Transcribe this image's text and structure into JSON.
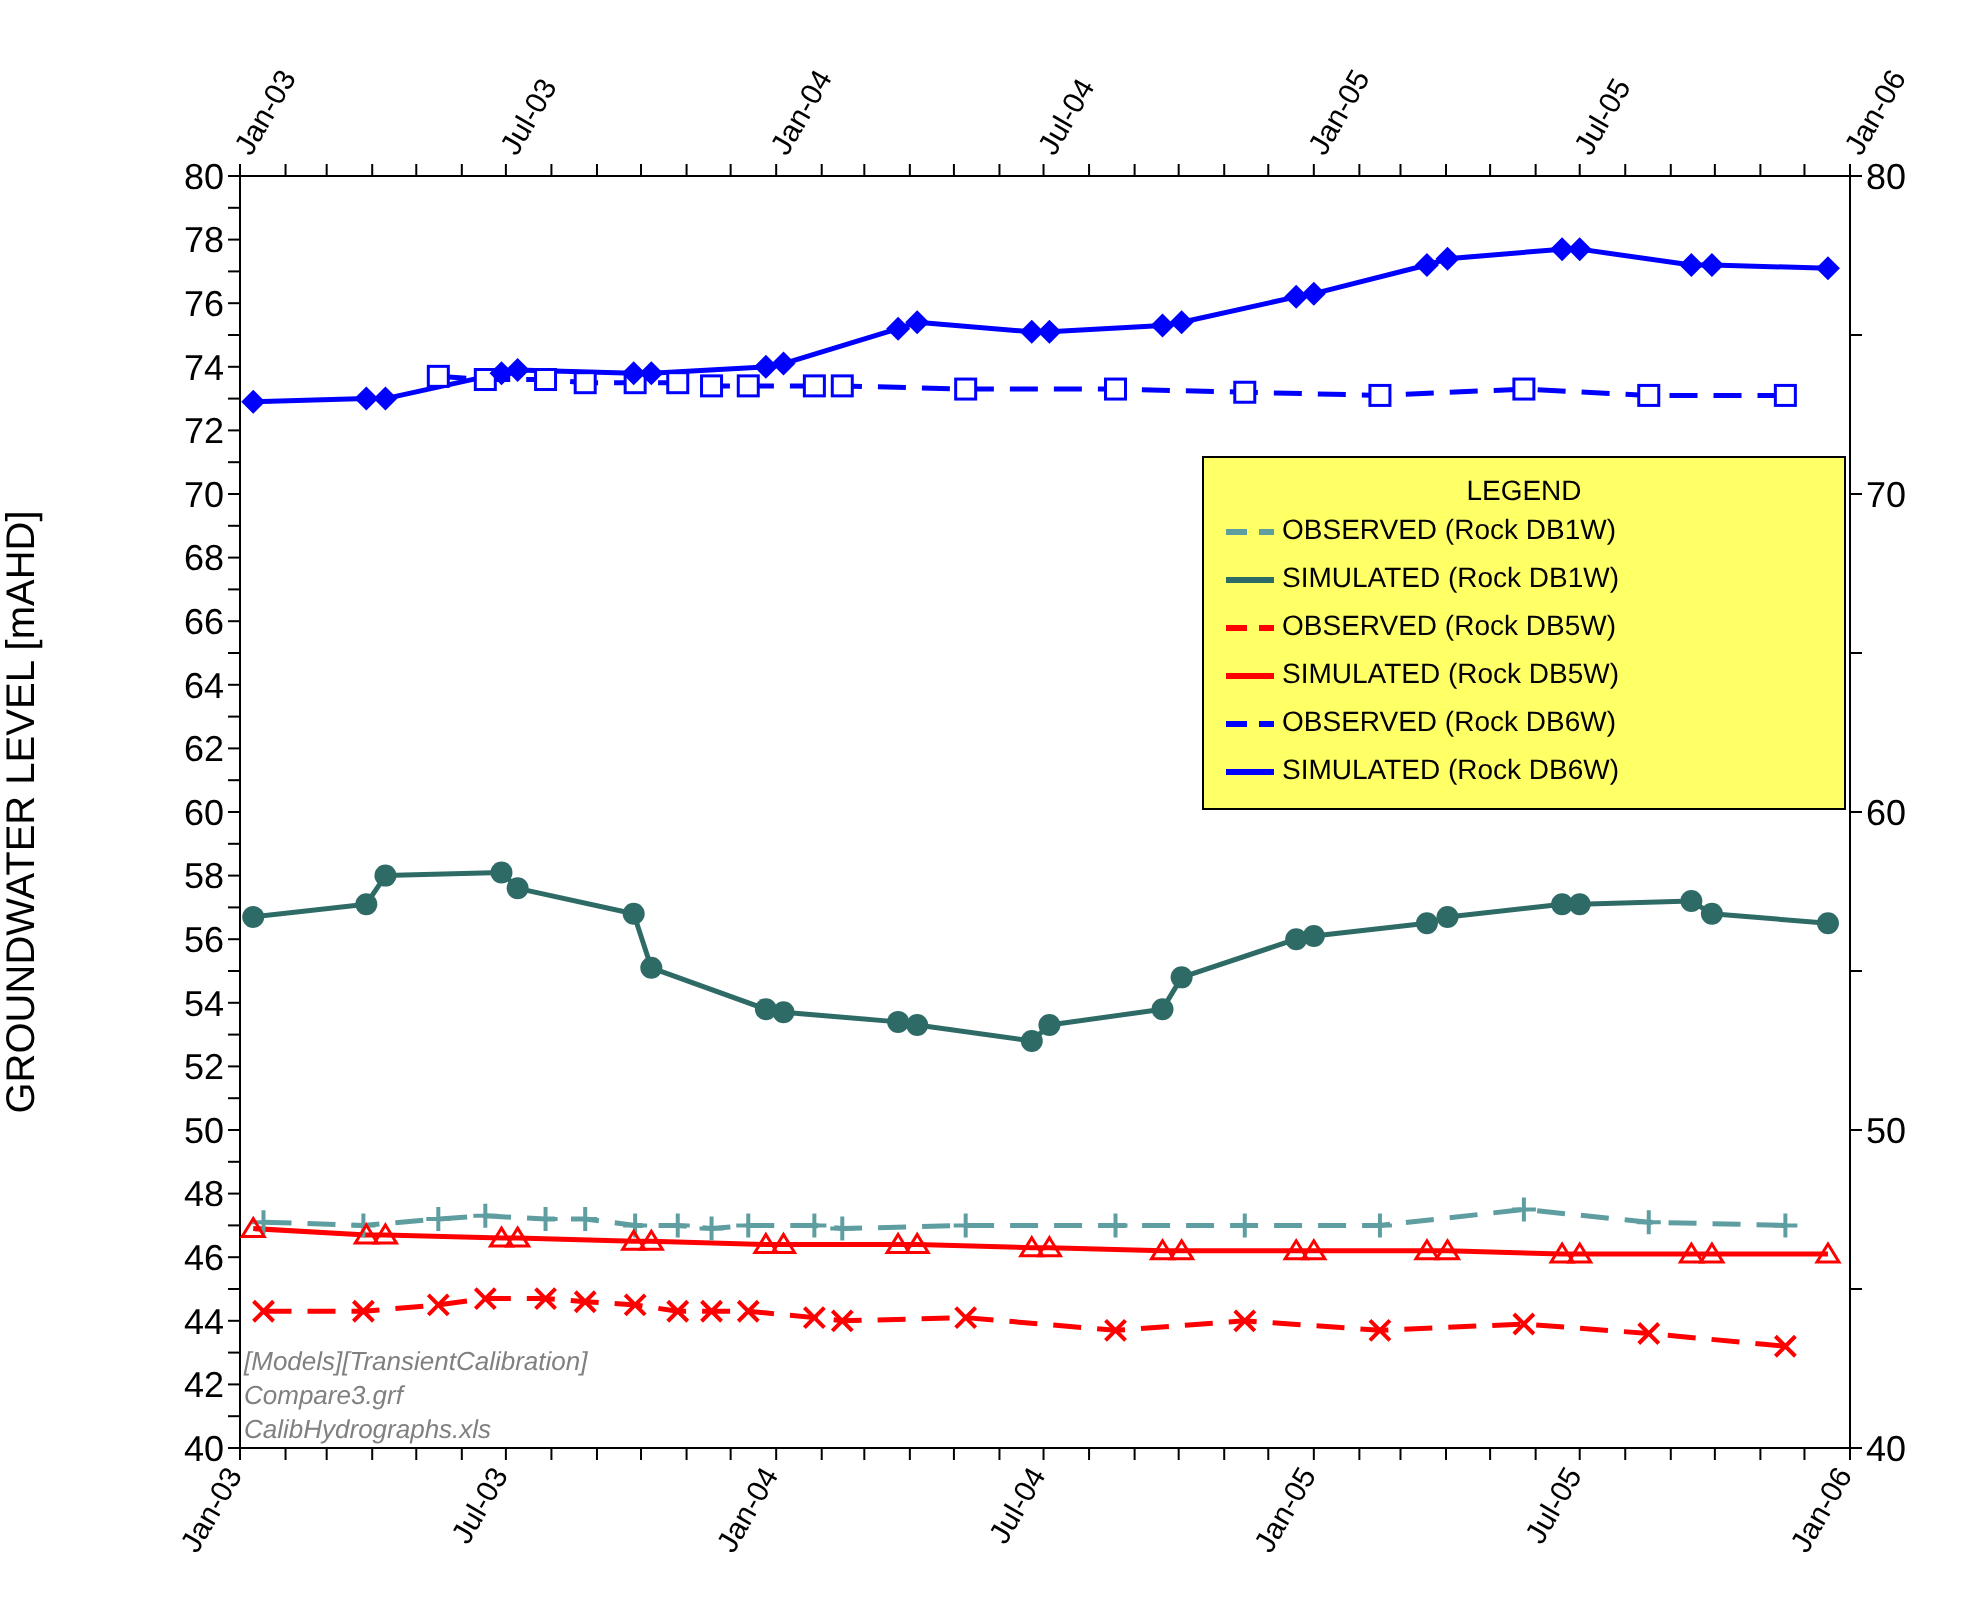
{
  "chart_data": {
    "type": "line",
    "ylabel": "GROUNDWATER LEVEL [mAHD]",
    "legend_title": "LEGEND",
    "legend": "top right",
    "xlim": [
      "2003-01",
      "2006-01"
    ],
    "xticks": [
      {
        "value": "2003-01",
        "label": "Jan-03"
      },
      {
        "value": "2003-02",
        "label": null
      },
      {
        "value": "2003-03",
        "label": null
      },
      {
        "value": "2003-04",
        "label": null
      },
      {
        "value": "2003-05",
        "label": null
      },
      {
        "value": "2003-06",
        "label": null
      },
      {
        "value": "2003-07",
        "label": "Jul-03"
      },
      {
        "value": "2003-08",
        "label": null
      },
      {
        "value": "2003-09",
        "label": null
      },
      {
        "value": "2003-10",
        "label": null
      },
      {
        "value": "2003-11",
        "label": null
      },
      {
        "value": "2003-12",
        "label": null
      },
      {
        "value": "2004-01",
        "label": "Jan-04"
      },
      {
        "value": "2004-02",
        "label": null
      },
      {
        "value": "2004-03",
        "label": null
      },
      {
        "value": "2004-04",
        "label": null
      },
      {
        "value": "2004-05",
        "label": null
      },
      {
        "value": "2004-06",
        "label": null
      },
      {
        "value": "2004-07",
        "label": "Jul-04"
      },
      {
        "value": "2004-08",
        "label": null
      },
      {
        "value": "2004-09",
        "label": null
      },
      {
        "value": "2004-10",
        "label": null
      },
      {
        "value": "2004-11",
        "label": null
      },
      {
        "value": "2004-12",
        "label": null
      },
      {
        "value": "2005-01",
        "label": "Jan-05"
      },
      {
        "value": "2005-02",
        "label": null
      },
      {
        "value": "2005-03",
        "label": null
      },
      {
        "value": "2005-04",
        "label": null
      },
      {
        "value": "2005-05",
        "label": null
      },
      {
        "value": "2005-06",
        "label": null
      },
      {
        "value": "2005-07",
        "label": "Jul-05"
      },
      {
        "value": "2005-08",
        "label": null
      },
      {
        "value": "2005-09",
        "label": null
      },
      {
        "value": "2005-10",
        "label": null
      },
      {
        "value": "2005-11",
        "label": null
      },
      {
        "value": "2005-12",
        "label": null
      },
      {
        "value": "2006-01",
        "label": "Jan-06"
      }
    ],
    "x2lim": [
      "2003-01",
      "2006-01"
    ],
    "x2ticks": [
      {
        "value": "2003-01",
        "label": "Jan-03"
      },
      {
        "value": "2003-02",
        "label": null
      },
      {
        "value": "2003-03",
        "label": null
      },
      {
        "value": "2003-04",
        "label": null
      },
      {
        "value": "2003-05",
        "label": null
      },
      {
        "value": "2003-06",
        "label": null
      },
      {
        "value": "2003-07",
        "label": "Jul-03"
      },
      {
        "value": "2003-08",
        "label": null
      },
      {
        "value": "2003-09",
        "label": null
      },
      {
        "value": "2003-10",
        "label": null
      },
      {
        "value": "2003-11",
        "label": null
      },
      {
        "value": "2003-12",
        "label": null
      },
      {
        "value": "2004-01",
        "label": "Jan-04"
      },
      {
        "value": "2004-02",
        "label": null
      },
      {
        "value": "2004-03",
        "label": null
      },
      {
        "value": "2004-04",
        "label": null
      },
      {
        "value": "2004-05",
        "label": null
      },
      {
        "value": "2004-06",
        "label": null
      },
      {
        "value": "2004-07",
        "label": "Jul-04"
      },
      {
        "value": "2004-08",
        "label": null
      },
      {
        "value": "2004-09",
        "label": null
      },
      {
        "value": "2004-10",
        "label": null
      },
      {
        "value": "2004-11",
        "label": null
      },
      {
        "value": "2004-12",
        "label": null
      },
      {
        "value": "2005-01",
        "label": "Jan-05"
      },
      {
        "value": "2005-02",
        "label": null
      },
      {
        "value": "2005-03",
        "label": null
      },
      {
        "value": "2005-04",
        "label": null
      },
      {
        "value": "2005-05",
        "label": null
      },
      {
        "value": "2005-06",
        "label": null
      },
      {
        "value": "2005-07",
        "label": "Jul-05"
      },
      {
        "value": "2005-08",
        "label": null
      },
      {
        "value": "2005-09",
        "label": null
      },
      {
        "value": "2005-10",
        "label": null
      },
      {
        "value": "2005-11",
        "label": null
      },
      {
        "value": "2005-12",
        "label": null
      },
      {
        "value": "2006-01",
        "label": "Jan-06"
      }
    ],
    "ylim": [
      40,
      80
    ],
    "yticks": [
      40,
      {
        "value": 41,
        "label": null
      },
      42,
      {
        "value": 43,
        "label": null
      },
      44,
      {
        "value": 45,
        "label": null
      },
      46,
      {
        "value": 47,
        "label": null
      },
      48,
      {
        "value": 49,
        "label": null
      },
      50,
      {
        "value": 51,
        "label": null
      },
      52,
      {
        "value": 53,
        "label": null
      },
      54,
      {
        "value": 55,
        "label": null
      },
      56,
      {
        "value": 57,
        "label": null
      },
      58,
      {
        "value": 59,
        "label": null
      },
      60,
      {
        "value": 61,
        "label": null
      },
      62,
      {
        "value": 63,
        "label": null
      },
      64,
      {
        "value": 65,
        "label": null
      },
      66,
      {
        "value": 67,
        "label": null
      },
      68,
      {
        "value": 69,
        "label": null
      },
      70,
      {
        "value": 71,
        "label": null
      },
      72,
      {
        "value": 73,
        "label": null
      },
      74,
      {
        "value": 75,
        "label": null
      },
      76,
      {
        "value": 77,
        "label": null
      },
      78,
      {
        "value": 79,
        "label": null
      },
      80
    ],
    "y2lim": [
      40,
      80
    ],
    "y2ticks": [
      40,
      {
        "value": 45,
        "label": null
      },
      50,
      {
        "value": 55,
        "label": null
      },
      60,
      {
        "value": 65,
        "label": null
      },
      70,
      {
        "value": 75,
        "label": null
      },
      80
    ],
    "series": [
      {
        "name": "OBSERVED (Rock DB1W)",
        "color": "#5f9ea0",
        "line_style": "dashed",
        "marker": "plus",
        "x": [
          "2003-01-17",
          "2003-03-26",
          "2003-05-16",
          "2003-06-17",
          "2003-07-28",
          "2003-08-24",
          "2003-09-27",
          "2003-10-26",
          "2003-11-18",
          "2003-12-13",
          "2004-01-27",
          "2004-02-15",
          "2004-05-09",
          "2004-08-19",
          "2004-11-15",
          "2005-02-15",
          "2005-05-24",
          "2005-08-17",
          "2005-11-18"
        ],
        "values": [
          47.1,
          47.0,
          47.2,
          47.3,
          47.2,
          47.2,
          47.0,
          47.0,
          46.9,
          47.0,
          47.0,
          46.9,
          47.0,
          47.0,
          47.0,
          47.0,
          47.5,
          47.1,
          47.0
        ]
      },
      {
        "name": "SIMULATED (Rock DB1W)",
        "color": "#2f6b66",
        "line_style": "solid",
        "marker": "circle",
        "x": [
          "2003-01-10",
          "2003-03-28",
          "2003-04-10",
          "2003-06-28",
          "2003-07-09",
          "2003-09-26",
          "2003-10-08",
          "2003-12-25",
          "2004-01-06",
          "2004-03-24",
          "2004-04-06",
          "2004-06-23",
          "2004-07-05",
          "2004-09-20",
          "2004-10-03",
          "2004-12-20",
          "2005-01-01",
          "2005-03-19",
          "2005-04-02",
          "2005-06-19",
          "2005-07-01",
          "2005-09-15",
          "2005-09-29",
          "2005-12-17"
        ],
        "values": [
          56.7,
          57.1,
          58.0,
          58.1,
          57.6,
          56.8,
          55.1,
          53.8,
          53.7,
          53.4,
          53.3,
          52.8,
          53.3,
          53.8,
          54.8,
          56.0,
          56.1,
          56.5,
          56.7,
          57.1,
          57.1,
          57.2,
          56.8,
          56.5
        ]
      },
      {
        "name": "OBSERVED (Rock DB5W)",
        "color": "#ff0000",
        "line_style": "dashed",
        "marker": "cross",
        "x": [
          "2003-01-17",
          "2003-03-26",
          "2003-05-16",
          "2003-06-17",
          "2003-07-28",
          "2003-08-24",
          "2003-09-27",
          "2003-10-26",
          "2003-11-18",
          "2003-12-13",
          "2004-01-27",
          "2004-02-15",
          "2004-05-09",
          "2004-08-19",
          "2004-11-15",
          "2005-02-15",
          "2005-05-24",
          "2005-08-17",
          "2005-11-18"
        ],
        "values": [
          44.3,
          44.3,
          44.5,
          44.7,
          44.7,
          44.6,
          44.5,
          44.3,
          44.3,
          44.3,
          44.1,
          44.0,
          44.1,
          43.7,
          44.0,
          43.7,
          43.9,
          43.6,
          43.2
        ]
      },
      {
        "name": "SIMULATED (Rock DB5W)",
        "color": "#ff0000",
        "line_style": "solid",
        "marker": "triangle",
        "x": [
          "2003-01-10",
          "2003-03-28",
          "2003-04-10",
          "2003-06-28",
          "2003-07-09",
          "2003-09-26",
          "2003-10-08",
          "2003-12-25",
          "2004-01-06",
          "2004-03-24",
          "2004-04-06",
          "2004-06-23",
          "2004-07-05",
          "2004-09-20",
          "2004-10-03",
          "2004-12-20",
          "2005-01-01",
          "2005-03-19",
          "2005-04-02",
          "2005-06-19",
          "2005-07-01",
          "2005-09-15",
          "2005-09-29",
          "2005-12-17"
        ],
        "values": [
          46.9,
          46.7,
          46.7,
          46.6,
          46.6,
          46.5,
          46.5,
          46.4,
          46.4,
          46.4,
          46.4,
          46.3,
          46.3,
          46.2,
          46.2,
          46.2,
          46.2,
          46.2,
          46.2,
          46.1,
          46.1,
          46.1,
          46.1,
          46.1
        ]
      },
      {
        "name": "OBSERVED (Rock DB6W)",
        "color": "#0000ff",
        "line_style": "dashed",
        "marker": "square",
        "x": [
          "2003-05-16",
          "2003-06-17",
          "2003-07-28",
          "2003-08-24",
          "2003-09-27",
          "2003-10-26",
          "2003-11-18",
          "2003-12-13",
          "2004-01-27",
          "2004-02-15",
          "2004-05-09",
          "2004-08-19",
          "2004-11-15",
          "2005-02-15",
          "2005-05-24",
          "2005-08-17",
          "2005-11-18"
        ],
        "values": [
          73.7,
          73.6,
          73.6,
          73.5,
          73.5,
          73.5,
          73.4,
          73.4,
          73.4,
          73.4,
          73.3,
          73.3,
          73.2,
          73.1,
          73.3,
          73.1,
          73.1
        ]
      },
      {
        "name": "SIMULATED (Rock DB6W)",
        "color": "#0000ff",
        "line_style": "solid",
        "marker": "diamond",
        "x": [
          "2003-01-10",
          "2003-03-28",
          "2003-04-10",
          "2003-06-28",
          "2003-07-09",
          "2003-09-26",
          "2003-10-08",
          "2003-12-25",
          "2004-01-06",
          "2004-03-24",
          "2004-04-06",
          "2004-06-23",
          "2004-07-05",
          "2004-09-20",
          "2004-10-03",
          "2004-12-20",
          "2005-01-01",
          "2005-03-19",
          "2005-04-02",
          "2005-06-19",
          "2005-07-01",
          "2005-09-15",
          "2005-09-29",
          "2005-12-17"
        ],
        "values": [
          72.9,
          73.0,
          73.0,
          73.8,
          73.9,
          73.8,
          73.8,
          74.0,
          74.1,
          75.2,
          75.4,
          75.1,
          75.1,
          75.3,
          75.4,
          76.2,
          76.3,
          77.2,
          77.4,
          77.7,
          77.7,
          77.2,
          77.2,
          77.1
        ]
      }
    ],
    "annotations": [
      "[Models][TransientCalibration]",
      "Compare3.grf",
      "CalibHydrographs.xls"
    ]
  }
}
